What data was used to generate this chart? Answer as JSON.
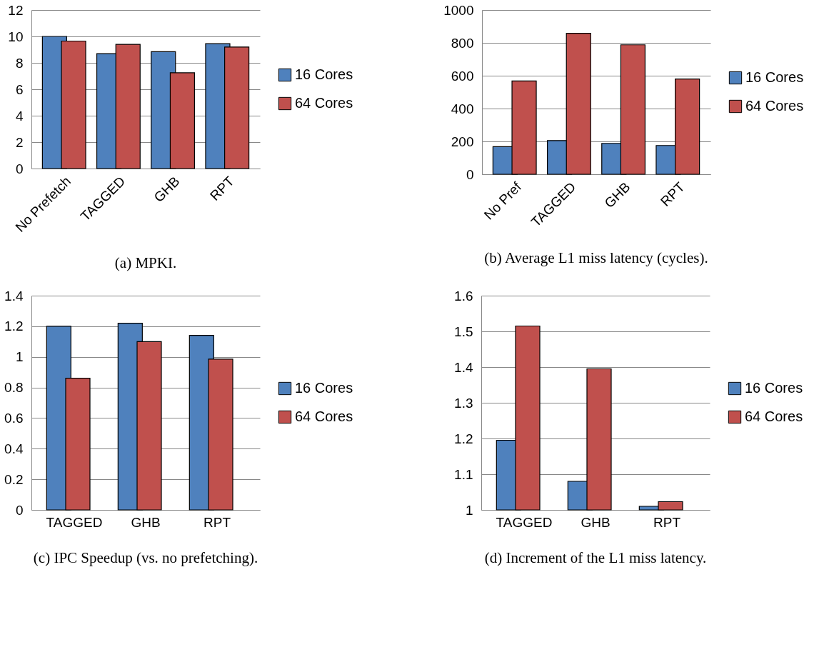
{
  "chart_data": [
    {
      "type": "bar",
      "title": "(a) MPKI.",
      "categories": [
        "No Prefetch",
        "TAGGED",
        "GHB",
        "RPT"
      ],
      "series": [
        {
          "name": "16 Cores",
          "color": "#4f81bd",
          "values": [
            10.0,
            8.7,
            8.85,
            9.45
          ]
        },
        {
          "name": "64 Cores",
          "color": "#c0504d",
          "values": [
            9.65,
            9.4,
            7.25,
            9.2
          ]
        }
      ],
      "ylim": [
        0,
        12
      ],
      "yticks": [
        0,
        2,
        4,
        6,
        8,
        10,
        12
      ],
      "grid": "y",
      "legend": "right"
    },
    {
      "type": "bar",
      "title": "(b) Average L1 miss latency (cycles).",
      "categories": [
        "No Pref",
        "TAGGED",
        "GHB",
        "RPT"
      ],
      "series": [
        {
          "name": "16 Cores",
          "color": "#4f81bd",
          "values": [
            168,
            205,
            188,
            175
          ]
        },
        {
          "name": "64 Cores",
          "color": "#c0504d",
          "values": [
            568,
            858,
            788,
            580
          ]
        }
      ],
      "ylim": [
        0,
        1000
      ],
      "yticks": [
        0,
        200,
        400,
        600,
        800,
        1000
      ],
      "grid": "y",
      "legend": "right"
    },
    {
      "type": "bar",
      "title": "(c) IPC Speedup (vs. no prefetching).",
      "categories": [
        "TAGGED",
        "GHB",
        "RPT"
      ],
      "series": [
        {
          "name": "16 Cores",
          "color": "#4f81bd",
          "values": [
            1.2,
            1.22,
            1.14
          ]
        },
        {
          "name": "64 Cores",
          "color": "#c0504d",
          "values": [
            0.86,
            1.1,
            0.985
          ]
        }
      ],
      "ylim": [
        0,
        1.4
      ],
      "yticks": [
        0,
        0.2,
        0.4,
        0.6,
        0.8,
        1,
        1.2,
        1.4
      ],
      "grid": "y",
      "legend": "right"
    },
    {
      "type": "bar",
      "title": "(d) Increment of the L1 miss latency.",
      "categories": [
        "TAGGED",
        "GHB",
        "RPT"
      ],
      "series": [
        {
          "name": "16 Cores",
          "color": "#4f81bd",
          "values": [
            1.195,
            1.08,
            1.01
          ]
        },
        {
          "name": "64 Cores",
          "color": "#c0504d",
          "values": [
            1.515,
            1.395,
            1.023
          ]
        }
      ],
      "ylim": [
        1,
        1.6
      ],
      "yticks": [
        1,
        1.1,
        1.2,
        1.3,
        1.4,
        1.5,
        1.6
      ],
      "grid": "y",
      "legend": "right"
    }
  ]
}
